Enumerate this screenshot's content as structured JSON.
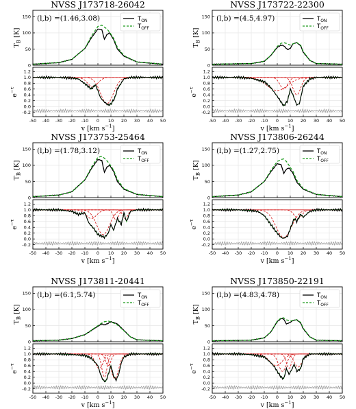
{
  "figure": {
    "xlabel": "v [km s⁻¹]",
    "ylabel_top": "T_B [K]",
    "ylabel_bottom": "e^-τ",
    "legend": [
      "T_ON",
      "T_OFF"
    ]
  },
  "colors": {
    "on": "#000000",
    "off": "#1a9a1a",
    "fit": "#d62020",
    "resid": "#999999",
    "grid": "#e2e2e2"
  },
  "chart_data": [
    {
      "type": "line",
      "title": "NVSS J173718-26042",
      "coords": "(l,b) =(1.46,3.08)",
      "xlim": [
        -50,
        50
      ],
      "top": {
        "ylim": [
          0,
          170
        ],
        "yticks": [
          0,
          50,
          100,
          150
        ],
        "T_ON": {
          "x": [
            -50,
            -30,
            -20,
            -10,
            -5,
            0,
            3,
            5,
            7,
            9,
            12,
            15,
            20,
            30,
            50
          ],
          "y": [
            3,
            8,
            18,
            52,
            85,
            112,
            110,
            80,
            95,
            100,
            80,
            50,
            28,
            10,
            3
          ]
        },
        "T_OFF": {
          "x": [
            -50,
            -30,
            -20,
            -10,
            -5,
            0,
            3,
            5,
            7,
            9,
            12,
            15,
            20,
            30,
            50
          ],
          "y": [
            3,
            8,
            18,
            52,
            90,
            120,
            124,
            118,
            112,
            102,
            84,
            55,
            30,
            10,
            3
          ]
        }
      },
      "bottom": {
        "ylim": [
          -0.35,
          1.35
        ],
        "yticks": [
          -0.2,
          0,
          0.2,
          0.4,
          0.6,
          0.8,
          1.0,
          1.2
        ],
        "absorption": {
          "x": [
            -50,
            -30,
            -20,
            -15,
            -10,
            -5,
            -2,
            0,
            2,
            5,
            8,
            10,
            13,
            15,
            20,
            25,
            30,
            50
          ],
          "y": [
            1.0,
            1.0,
            0.98,
            0.95,
            0.78,
            0.6,
            0.75,
            0.55,
            0.3,
            0.15,
            0.05,
            0.08,
            0.3,
            0.6,
            0.95,
            1.0,
            1.0,
            1.0
          ]
        },
        "components": [
          {
            "center": -4,
            "depth": 0.32,
            "width": 4
          },
          {
            "center": 7,
            "depth": 0.9,
            "width": 5
          }
        ]
      }
    },
    {
      "type": "line",
      "title": "NVSS J173722-22300",
      "coords": "(l,b) =(4.5,4.97)",
      "xlim": [
        -50,
        50
      ],
      "top": {
        "ylim": [
          0,
          170
        ],
        "yticks": [
          0,
          50,
          100,
          150
        ],
        "T_ON": {
          "x": [
            -50,
            -20,
            -10,
            -5,
            0,
            3,
            5,
            8,
            10,
            12,
            15,
            18,
            20,
            25,
            30,
            50
          ],
          "y": [
            3,
            5,
            12,
            30,
            55,
            62,
            60,
            48,
            52,
            66,
            70,
            60,
            40,
            15,
            5,
            3
          ]
        },
        "T_OFF": {
          "x": [
            -50,
            -20,
            -10,
            -5,
            0,
            3,
            5,
            8,
            10,
            12,
            15,
            18,
            20,
            25,
            30,
            50
          ],
          "y": [
            3,
            5,
            12,
            30,
            58,
            68,
            70,
            66,
            62,
            66,
            70,
            62,
            42,
            15,
            5,
            3
          ]
        }
      },
      "bottom": {
        "ylim": [
          -0.35,
          1.35
        ],
        "yticks": [
          -0.2,
          0,
          0.2,
          0.4,
          0.6,
          0.8,
          1.0,
          1.2
        ],
        "absorption": {
          "x": [
            -50,
            -30,
            -20,
            -10,
            -5,
            0,
            3,
            5,
            8,
            10,
            12,
            15,
            17,
            20,
            25,
            30,
            50
          ],
          "y": [
            1.0,
            1.0,
            0.97,
            0.85,
            0.65,
            0.35,
            0.15,
            0.02,
            0.2,
            0.6,
            0.4,
            0.05,
            0.1,
            0.7,
            0.95,
            1.0,
            1.0
          ]
        },
        "components": [
          {
            "center": 0,
            "depth": 0.45,
            "width": 8
          },
          {
            "center": 5,
            "depth": 0.4,
            "width": 3
          },
          {
            "center": 15,
            "depth": 0.6,
            "width": 3
          }
        ]
      }
    },
    {
      "type": "line",
      "title": "NVSS J173753-25464",
      "coords": "(l,b) =(1.78,3.12)",
      "xlim": [
        -50,
        50
      ],
      "top": {
        "ylim": [
          0,
          170
        ],
        "yticks": [
          0,
          50,
          100,
          150
        ],
        "T_ON": {
          "x": [
            -50,
            -30,
            -20,
            -10,
            -5,
            0,
            3,
            5,
            7,
            9,
            12,
            15,
            20,
            30,
            50
          ],
          "y": [
            3,
            8,
            18,
            55,
            90,
            118,
            115,
            78,
            95,
            100,
            82,
            50,
            26,
            10,
            3
          ]
        },
        "T_OFF": {
          "x": [
            -50,
            -30,
            -20,
            -10,
            -5,
            0,
            3,
            5,
            7,
            9,
            12,
            15,
            20,
            30,
            50
          ],
          "y": [
            3,
            8,
            18,
            55,
            94,
            125,
            128,
            122,
            114,
            104,
            86,
            56,
            28,
            10,
            3
          ]
        }
      },
      "bottom": {
        "ylim": [
          -0.35,
          1.35
        ],
        "yticks": [
          -0.2,
          0,
          0.2,
          0.4,
          0.6,
          0.8,
          1.0,
          1.2
        ],
        "absorption": {
          "x": [
            -50,
            -30,
            -20,
            -15,
            -10,
            -7,
            -3,
            0,
            3,
            5,
            8,
            10,
            12,
            15,
            18,
            20,
            22,
            25,
            30,
            50
          ],
          "y": [
            1.0,
            1.0,
            0.95,
            0.85,
            0.9,
            0.55,
            0.35,
            0.15,
            0.1,
            0.05,
            0.2,
            0.5,
            0.3,
            0.7,
            0.5,
            0.9,
            0.6,
            0.95,
            1.0,
            1.0
          ]
        },
        "components": [
          {
            "center": -5,
            "depth": 0.3,
            "width": 4
          },
          {
            "center": 4,
            "depth": 0.85,
            "width": 5
          },
          {
            "center": 14,
            "depth": 0.35,
            "width": 2
          },
          {
            "center": 21,
            "depth": 0.3,
            "width": 2
          }
        ]
      }
    },
    {
      "type": "line",
      "title": "NVSS J173806-26244",
      "coords": "(l,b) =(1.27,2.75)",
      "xlim": [
        -50,
        50
      ],
      "top": {
        "ylim": [
          0,
          170
        ],
        "yticks": [
          0,
          50,
          100,
          150
        ],
        "T_ON": {
          "x": [
            -50,
            -30,
            -20,
            -10,
            -5,
            0,
            3,
            5,
            7,
            9,
            12,
            15,
            20,
            30,
            50
          ],
          "y": [
            3,
            8,
            18,
            50,
            80,
            105,
            102,
            75,
            88,
            92,
            76,
            48,
            26,
            10,
            3
          ]
        },
        "T_OFF": {
          "x": [
            -50,
            -30,
            -20,
            -10,
            -5,
            0,
            3,
            5,
            7,
            9,
            12,
            15,
            20,
            30,
            50
          ],
          "y": [
            3,
            8,
            18,
            50,
            84,
            112,
            118,
            120,
            112,
            100,
            82,
            54,
            28,
            10,
            3
          ]
        }
      },
      "bottom": {
        "ylim": [
          -0.35,
          1.35
        ],
        "yticks": [
          -0.2,
          0,
          0.2,
          0.4,
          0.6,
          0.8,
          1.0,
          1.2
        ],
        "absorption": {
          "x": [
            -50,
            -30,
            -20,
            -15,
            -10,
            -5,
            0,
            3,
            5,
            8,
            10,
            13,
            15,
            18,
            20,
            25,
            30,
            50
          ],
          "y": [
            1.0,
            1.0,
            0.98,
            0.95,
            0.8,
            0.5,
            0.2,
            0.05,
            0.02,
            0.1,
            0.35,
            0.7,
            0.6,
            0.85,
            0.75,
            0.95,
            1.0,
            1.0
          ]
        },
        "components": [
          {
            "center": 5,
            "depth": 0.95,
            "width": 6
          },
          {
            "center": 16,
            "depth": 0.3,
            "width": 3
          }
        ]
      }
    },
    {
      "type": "line",
      "title": "NVSS J173811-20441",
      "coords": "(l,b) =(6.1,5.74)",
      "xlim": [
        -50,
        50
      ],
      "top": {
        "ylim": [
          0,
          170
        ],
        "yticks": [
          0,
          50,
          100,
          150
        ],
        "T_ON": {
          "x": [
            -50,
            -30,
            -20,
            -10,
            -5,
            0,
            3,
            5,
            8,
            10,
            12,
            15,
            20,
            25,
            30,
            50
          ],
          "y": [
            3,
            5,
            10,
            22,
            35,
            48,
            55,
            52,
            57,
            62,
            60,
            55,
            35,
            15,
            6,
            3
          ]
        },
        "T_OFF": {
          "x": [
            -50,
            -30,
            -20,
            -10,
            -5,
            0,
            3,
            5,
            8,
            10,
            12,
            15,
            20,
            25,
            30,
            50
          ],
          "y": [
            3,
            5,
            10,
            22,
            36,
            50,
            58,
            62,
            64,
            62,
            58,
            52,
            34,
            15,
            6,
            3
          ]
        }
      },
      "bottom": {
        "ylim": [
          -0.35,
          1.35
        ],
        "yticks": [
          -0.2,
          0,
          0.2,
          0.4,
          0.6,
          0.8,
          1.0,
          1.2
        ],
        "absorption": {
          "x": [
            -50,
            -30,
            -20,
            -10,
            -5,
            0,
            2,
            4,
            6,
            8,
            10,
            12,
            14,
            16,
            18,
            20,
            25,
            30,
            50
          ],
          "y": [
            1.0,
            1.0,
            0.98,
            0.95,
            0.85,
            0.6,
            0.3,
            0.1,
            0.05,
            0.3,
            0.6,
            0.25,
            0.1,
            0.3,
            0.7,
            0.9,
            1.0,
            1.0,
            1.0
          ]
        },
        "components": [
          {
            "center": 1,
            "depth": 0.5,
            "width": 3
          },
          {
            "center": 5,
            "depth": 0.8,
            "width": 2
          },
          {
            "center": 13,
            "depth": 0.85,
            "width": 3
          },
          {
            "center": 8,
            "depth": 0.4,
            "width": 2
          }
        ]
      }
    },
    {
      "type": "line",
      "title": "NVSS J173850-22191",
      "coords": "(l,b) =(4.83,4.78)",
      "xlim": [
        -50,
        50
      ],
      "top": {
        "ylim": [
          0,
          170
        ],
        "yticks": [
          0,
          50,
          100,
          150
        ],
        "T_ON": {
          "x": [
            -50,
            -20,
            -10,
            -5,
            0,
            3,
            5,
            7,
            10,
            12,
            15,
            18,
            20,
            25,
            30,
            50
          ],
          "y": [
            3,
            5,
            12,
            30,
            62,
            72,
            70,
            55,
            60,
            66,
            68,
            58,
            40,
            15,
            5,
            3
          ]
        },
        "T_OFF": {
          "x": [
            -50,
            -20,
            -10,
            -5,
            0,
            3,
            5,
            7,
            10,
            12,
            15,
            18,
            20,
            25,
            30,
            50
          ],
          "y": [
            3,
            5,
            12,
            30,
            64,
            74,
            74,
            68,
            64,
            66,
            68,
            60,
            42,
            15,
            5,
            3
          ]
        }
      },
      "bottom": {
        "ylim": [
          -0.35,
          1.35
        ],
        "yticks": [
          -0.2,
          0,
          0.2,
          0.4,
          0.6,
          0.8,
          1.0,
          1.2
        ],
        "absorption": {
          "x": [
            -50,
            -30,
            -20,
            -10,
            -5,
            -2,
            0,
            3,
            5,
            7,
            9,
            11,
            13,
            15,
            18,
            20,
            25,
            30,
            50
          ],
          "y": [
            1.0,
            1.0,
            0.98,
            0.9,
            0.7,
            0.55,
            0.4,
            0.2,
            0.15,
            0.5,
            0.3,
            0.45,
            0.65,
            0.4,
            0.5,
            0.85,
            1.0,
            1.0,
            1.0
          ]
        },
        "components": [
          {
            "center": -1,
            "depth": 0.4,
            "width": 5
          },
          {
            "center": 4,
            "depth": 0.6,
            "width": 3
          },
          {
            "center": 9,
            "depth": 0.5,
            "width": 2
          },
          {
            "center": 16,
            "depth": 0.45,
            "width": 3
          }
        ]
      }
    }
  ]
}
